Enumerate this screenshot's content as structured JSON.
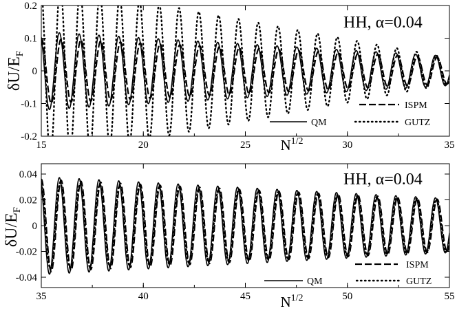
{
  "chart_data": [
    {
      "type": "line",
      "annotation": "HH,  α=0.04",
      "ylabel": {
        "main": "δU/E",
        "sub": "F"
      },
      "xlabel": {
        "main": "N",
        "sup": "1/2"
      },
      "xlim": [
        15,
        35
      ],
      "ylim": [
        -0.2,
        0.2
      ],
      "xticks": [
        "15",
        "20",
        "25",
        "30",
        "35"
      ],
      "yticks": [
        "-0.2",
        "-0.1",
        "0",
        "0.1",
        "0.2"
      ],
      "legend_position": "bottom-right",
      "series": [
        {
          "name": "ISPM",
          "style": "dashed",
          "description_values": {
            "envelope_start": 0.1,
            "envelope_end": 0.04,
            "period": 0.97
          }
        },
        {
          "name": "QM",
          "style": "solid",
          "description_values": {
            "envelope_start": 0.12,
            "envelope_end": 0.045,
            "period": 0.97
          }
        },
        {
          "name": "GUTZ",
          "style": "dotted",
          "description_values": {
            "envelope_start": 0.27,
            "envelope_end": 0.04,
            "period": 0.97
          }
        }
      ]
    },
    {
      "type": "line",
      "annotation": "HH,  α=0.04",
      "ylabel": {
        "main": "δU/E",
        "sub": "F"
      },
      "xlabel": {
        "main": "N",
        "sup": "1/2"
      },
      "xlim": [
        35,
        55
      ],
      "ylim": [
        -0.048,
        0.048
      ],
      "xticks": [
        "35",
        "40",
        "45",
        "50",
        "55"
      ],
      "yticks": [
        "-0.04",
        "-0.02",
        "0",
        "0.02",
        "0.04"
      ],
      "legend_position": "bottom-right",
      "series": [
        {
          "name": "ISPM",
          "style": "dashed",
          "description_values": {
            "envelope_start": 0.036,
            "envelope_end": 0.02,
            "period": 0.97
          }
        },
        {
          "name": "QM",
          "style": "solid",
          "description_values": {
            "envelope_start": 0.038,
            "envelope_end": 0.021,
            "period": 0.97
          }
        },
        {
          "name": "GUTZ",
          "style": "dotted",
          "description_values": {
            "envelope_start": 0.034,
            "envelope_end": 0.02,
            "period": 0.97
          }
        }
      ]
    }
  ]
}
